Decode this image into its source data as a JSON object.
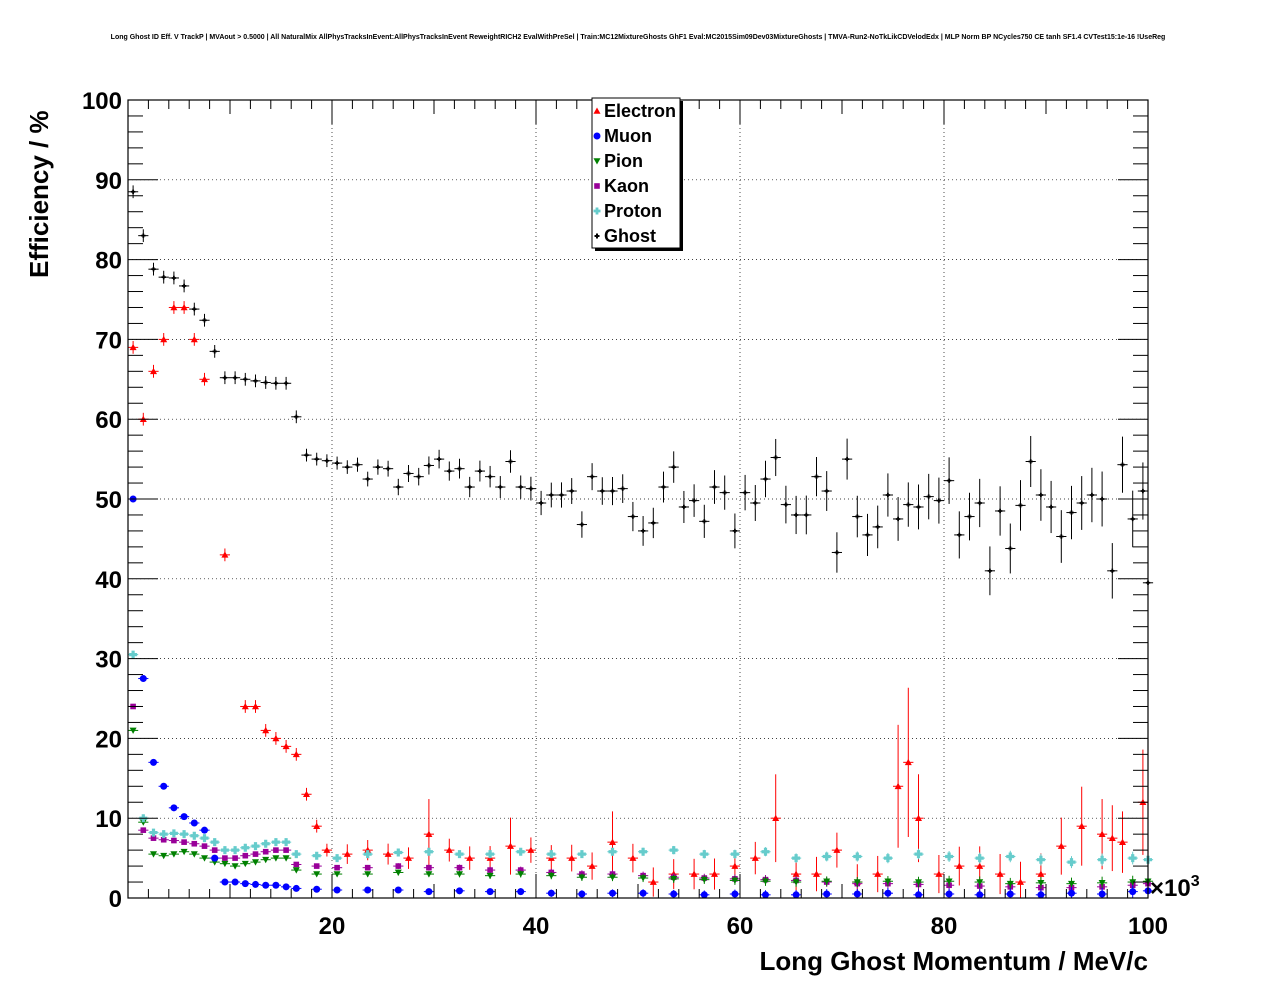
{
  "chart_data": {
    "type": "scatter",
    "title": "Long Ghost ID Eff. V TrackP | MVAout > 0.5000 | All NaturalMix AllPhysTracksInEvent:AllPhysTracksInEvent ReweightRICH2 EvalWithPreSel | Train:MC12MixtureGhosts GhF1 Eval:MC2015Sim09Dev03MixtureGhosts | TMVA-Run2-NoTkLikCDVelodEdx | MLP Norm BP NCycles750 CE tanh SF1.4 CVTest15:1e-16 !UseReg",
    "xlabel": "Long Ghost Momentum / MeV/c",
    "ylabel": "Efficiency / %",
    "x_multiplier": "×10",
    "x_multiplier_exp": "3",
    "xlim": [
      0,
      100
    ],
    "ylim": [
      0,
      100
    ],
    "x_ticks": [
      20,
      40,
      60,
      80,
      100
    ],
    "y_ticks": [
      0,
      10,
      20,
      30,
      40,
      50,
      60,
      70,
      80,
      90,
      100
    ],
    "x_tick_labels": [
      "20",
      "40",
      "60",
      "80",
      "100"
    ],
    "y_tick_labels": [
      "0",
      "10",
      "20",
      "30",
      "40",
      "50",
      "60",
      "70",
      "80",
      "90",
      "100"
    ],
    "grid": true,
    "legend_position": "top-center",
    "series": [
      {
        "name": "Electron",
        "color": "#ff0000",
        "marker": "triangle-up",
        "x": [
          0.5,
          1.5,
          2.5,
          3.5,
          4.5,
          5.5,
          6.5,
          7.5,
          9.5,
          11.5,
          12.5,
          13.5,
          14.5,
          15.5,
          16.5,
          17.5,
          18.5,
          19.5,
          21.5,
          23.5,
          25.5,
          27.5,
          29.5,
          31.5,
          33.5,
          35.5,
          37.5,
          39.5,
          41.5,
          43.5,
          45.5,
          47.5,
          49.5,
          51.5,
          53.5,
          55.5,
          57.5,
          59.5,
          61.5,
          63.5,
          65.5,
          67.5,
          69.5,
          71.5,
          73.5,
          75.5,
          76.5,
          77.5,
          79.5,
          81.5,
          83.5,
          85.5,
          87.5,
          89.5,
          91.5,
          93.5,
          95.5,
          96.5,
          97.5,
          99.5
        ],
        "y": [
          69,
          60,
          66,
          70,
          74,
          74,
          70,
          65,
          43,
          24,
          24,
          21,
          20,
          19,
          18,
          13,
          9,
          6,
          5.5,
          6,
          5.5,
          5,
          8,
          6,
          5,
          5,
          6.5,
          6,
          5,
          5,
          4,
          7,
          5,
          2,
          3,
          3,
          3,
          4,
          5,
          10,
          3,
          3,
          6,
          2,
          3,
          14,
          17,
          10,
          3,
          4,
          4,
          3,
          2,
          3,
          6.5,
          9,
          8,
          7.5,
          7,
          12
        ]
      },
      {
        "name": "Muon",
        "color": "#0000ff",
        "marker": "circle",
        "x": [
          0.5,
          1.5,
          2.5,
          3.5,
          4.5,
          5.5,
          6.5,
          7.5,
          8.5,
          9.5,
          10.5,
          11.5,
          12.5,
          13.5,
          14.5,
          15.5,
          16.5,
          18.5,
          20.5,
          23.5,
          26.5,
          29.5,
          32.5,
          35.5,
          38.5,
          41.5,
          44.5,
          47.5,
          50.5,
          53.5,
          56.5,
          59.5,
          62.5,
          65.5,
          68.5,
          71.5,
          74.5,
          77.5,
          80.5,
          83.5,
          86.5,
          89.5,
          92.5,
          95.5,
          98.5,
          100
        ],
        "y": [
          50,
          27.5,
          17,
          14,
          11.3,
          10.2,
          9.4,
          8.5,
          5,
          2,
          2,
          1.8,
          1.7,
          1.6,
          1.6,
          1.4,
          1.2,
          1.1,
          1,
          1,
          1,
          0.8,
          0.9,
          0.8,
          0.8,
          0.6,
          0.5,
          0.6,
          0.6,
          0.5,
          0.4,
          0.5,
          0.4,
          0.4,
          0.5,
          0.5,
          0.6,
          0.4,
          0.5,
          0.4,
          0.5,
          0.4,
          0.6,
          0.5,
          0.8,
          0.9
        ]
      },
      {
        "name": "Pion",
        "color": "#008000",
        "marker": "triangle-down",
        "x": [
          0.5,
          1.5,
          2.5,
          3.5,
          4.5,
          5.5,
          6.5,
          7.5,
          8.5,
          9.5,
          10.5,
          11.5,
          12.5,
          13.5,
          14.5,
          15.5,
          16.5,
          18.5,
          20.5,
          23.5,
          26.5,
          29.5,
          32.5,
          35.5,
          38.5,
          41.5,
          44.5,
          47.5,
          50.5,
          53.5,
          56.5,
          59.5,
          62.5,
          65.5,
          68.5,
          71.5,
          74.5,
          77.5,
          80.5,
          83.5,
          86.5,
          89.5,
          92.5,
          95.5,
          98.5,
          100
        ],
        "y": [
          21,
          9.5,
          5.5,
          5.3,
          5.5,
          5.8,
          5.5,
          5.0,
          4.5,
          4.3,
          4.0,
          4.3,
          4.5,
          4.8,
          5.0,
          5.0,
          3.5,
          3.0,
          3.0,
          3.0,
          3.2,
          3.0,
          3.0,
          2.8,
          3.0,
          2.8,
          2.6,
          2.6,
          2.5,
          2.4,
          2.3,
          2.2,
          2.1,
          2.0,
          2.1,
          2.0,
          2.1,
          2.0,
          2.1,
          2.0,
          1.8,
          1.9,
          1.8,
          1.9,
          2.0,
          2.1
        ]
      },
      {
        "name": "Kaon",
        "color": "#990099",
        "marker": "square",
        "x": [
          0.5,
          1.5,
          2.5,
          3.5,
          4.5,
          5.5,
          6.5,
          7.5,
          8.5,
          9.5,
          10.5,
          11.5,
          12.5,
          13.5,
          14.5,
          15.5,
          16.5,
          18.5,
          20.5,
          23.5,
          26.5,
          29.5,
          32.5,
          35.5,
          38.5,
          41.5,
          44.5,
          47.5,
          50.5,
          53.5,
          56.5,
          59.5,
          62.5,
          65.5,
          68.5,
          71.5,
          74.5,
          77.5,
          80.5,
          83.5,
          86.5,
          89.5,
          92.5,
          95.5,
          98.5,
          100
        ],
        "y": [
          24,
          8.5,
          7.5,
          7.3,
          7.2,
          7.0,
          6.8,
          6.5,
          6.0,
          5.0,
          5.0,
          5.3,
          5.5,
          5.8,
          6.0,
          6.0,
          4.2,
          4.0,
          3.8,
          3.8,
          4.0,
          3.8,
          3.8,
          3.5,
          3.5,
          3.2,
          3.0,
          3.0,
          2.8,
          2.6,
          2.5,
          2.4,
          2.3,
          2.2,
          2.0,
          1.8,
          1.8,
          1.7,
          1.6,
          1.5,
          1.4,
          1.3,
          1.3,
          1.4,
          1.6,
          1.8
        ]
      },
      {
        "name": "Proton",
        "color": "#66cccc",
        "marker": "cross",
        "x": [
          0.5,
          1.5,
          2.5,
          3.5,
          4.5,
          5.5,
          6.5,
          7.5,
          8.5,
          9.5,
          10.5,
          11.5,
          12.5,
          13.5,
          14.5,
          15.5,
          16.5,
          18.5,
          20.5,
          23.5,
          26.5,
          29.5,
          32.5,
          35.5,
          38.5,
          41.5,
          44.5,
          47.5,
          50.5,
          53.5,
          56.5,
          59.5,
          62.5,
          65.5,
          68.5,
          71.5,
          74.5,
          77.5,
          80.5,
          83.5,
          86.5,
          89.5,
          92.5,
          95.5,
          98.5,
          100
        ],
        "y": [
          30.5,
          10,
          8.2,
          8.0,
          8.1,
          8.0,
          7.8,
          7.5,
          7.0,
          6.0,
          6.0,
          6.3,
          6.5,
          6.8,
          7.0,
          7.0,
          5.5,
          5.3,
          5.0,
          5.5,
          5.7,
          5.8,
          5.5,
          5.5,
          5.8,
          5.5,
          5.5,
          5.8,
          5.8,
          6.0,
          5.5,
          5.5,
          5.8,
          5.0,
          5.2,
          5.2,
          5.0,
          5.5,
          5.2,
          5.0,
          5.2,
          4.8,
          4.5,
          4.8,
          5.0,
          4.8
        ]
      },
      {
        "name": "Ghost",
        "color": "#000000",
        "marker": "cross",
        "x": [
          0.5,
          1.5,
          2.5,
          3.5,
          4.5,
          5.5,
          6.5,
          7.5,
          8.5,
          9.5,
          10.5,
          11.5,
          12.5,
          13.5,
          14.5,
          15.5,
          16.5,
          17.5,
          18.5,
          19.5,
          20.5,
          21.5,
          22.5,
          23.5,
          24.5,
          25.5,
          26.5,
          27.5,
          28.5,
          29.5,
          30.5,
          31.5,
          32.5,
          33.5,
          34.5,
          35.5,
          36.5,
          37.5,
          38.5,
          39.5,
          40.5,
          41.5,
          42.5,
          43.5,
          44.5,
          45.5,
          46.5,
          47.5,
          48.5,
          49.5,
          50.5,
          51.5,
          52.5,
          53.5,
          54.5,
          55.5,
          56.5,
          57.5,
          58.5,
          59.5,
          60.5,
          61.5,
          62.5,
          63.5,
          64.5,
          65.5,
          66.5,
          67.5,
          68.5,
          69.5,
          70.5,
          71.5,
          72.5,
          73.5,
          74.5,
          75.5,
          76.5,
          77.5,
          78.5,
          79.5,
          80.5,
          81.5,
          82.5,
          83.5,
          84.5,
          85.5,
          86.5,
          87.5,
          88.5,
          89.5,
          90.5,
          91.5,
          92.5,
          93.5,
          94.5,
          95.5,
          96.5,
          97.5,
          98.5,
          99.5,
          100
        ],
        "y": [
          88.5,
          83,
          78.8,
          77.8,
          77.7,
          76.7,
          73.8,
          72.4,
          68.5,
          65.2,
          65.2,
          65.0,
          64.8,
          64.6,
          64.5,
          64.5,
          60.3,
          55.5,
          55.0,
          54.8,
          54.5,
          54.0,
          54.3,
          52.5,
          54.0,
          53.8,
          51.5,
          53.2,
          52.8,
          54.2,
          55.0,
          53.5,
          53.8,
          51.5,
          53.5,
          52.8,
          51.5,
          54.7,
          51.5,
          51.3,
          49.5,
          50.5,
          50.5,
          51.0,
          46.8,
          52.8,
          51.0,
          51.0,
          51.3,
          47.8,
          46.0,
          47.0,
          51.5,
          54.0,
          49.0,
          49.8,
          47.2,
          51.5,
          50.8,
          46.0,
          50.8,
          49.5,
          52.5,
          55.2,
          49.3,
          48.0,
          48.0,
          52.8,
          51.0,
          43.3,
          55.0,
          47.8,
          45.5,
          46.5,
          50.5,
          47.5,
          49.3,
          49.0,
          50.3,
          49.8,
          52.3,
          45.5,
          47.8,
          49.5,
          41.0,
          48.5,
          43.8,
          49.2,
          54.7,
          50.5,
          49.0,
          45.3,
          48.3,
          49.5,
          50.5,
          50.0,
          41.0,
          54.3,
          47.5,
          51.0,
          39.5
        ]
      }
    ]
  }
}
